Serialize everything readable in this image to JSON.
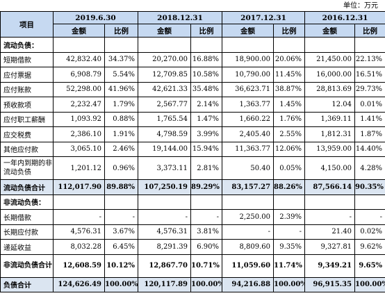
{
  "unit_label": "单位：万元",
  "header": {
    "item_label": "项目",
    "periods": [
      "2019.6.30",
      "2018.12.31",
      "2017.12.31",
      "2016.12.31"
    ],
    "amount_label": "金额",
    "ratio_label": "比例"
  },
  "rows": [
    {
      "label": "流动负债：",
      "kind": "section",
      "cells": [
        "",
        "",
        "",
        "",
        "",
        "",
        "",
        ""
      ]
    },
    {
      "label": "短期借款",
      "kind": "normal",
      "cells": [
        "42,832.40",
        "34.37%",
        "20,270.00",
        "16.88%",
        "18,900.00",
        "20.06%",
        "21,450.00",
        "22.13%"
      ]
    },
    {
      "label": "应付票据",
      "kind": "normal",
      "cells": [
        "6,908.79",
        "5.54%",
        "12,709.85",
        "10.58%",
        "10,790.00",
        "11.45%",
        "16,000.00",
        "16.51%"
      ]
    },
    {
      "label": "应付账款",
      "kind": "normal",
      "cells": [
        "52,298.00",
        "41.96%",
        "42,621.33",
        "35.48%",
        "36,623.71",
        "38.87%",
        "28,813.69",
        "29.73%"
      ]
    },
    {
      "label": "预收款项",
      "kind": "normal",
      "cells": [
        "2,232.47",
        "1.79%",
        "2,567.77",
        "2.14%",
        "1,363.77",
        "1.45%",
        "12.04",
        "0.01%"
      ]
    },
    {
      "label": "应付职工薪酬",
      "kind": "normal",
      "cells": [
        "1,093.92",
        "0.88%",
        "1,765.54",
        "1.47%",
        "1,660.22",
        "1.76%",
        "1,369.11",
        "1.41%"
      ]
    },
    {
      "label": "应交税费",
      "kind": "normal",
      "cells": [
        "2,386.10",
        "1.91%",
        "4,798.59",
        "3.99%",
        "2,405.40",
        "2.55%",
        "1,812.31",
        "1.87%"
      ]
    },
    {
      "label": "其他应付款",
      "kind": "normal",
      "cells": [
        "3,065.10",
        "2.46%",
        "19,144.00",
        "15.94%",
        "11,363.77",
        "12.06%",
        "13,959.00",
        "14.40%"
      ]
    },
    {
      "label": "一年内到期的非流动负债",
      "kind": "tall",
      "cells": [
        "1,201.12",
        "0.96%",
        "3,373.11",
        "2.81%",
        "50.40",
        "0.05%",
        "4,150.00",
        "4.28%"
      ]
    },
    {
      "label": "流动负债合计",
      "kind": "total",
      "cells": [
        "112,017.90",
        "89.88%",
        "107,250.19",
        "89.29%",
        "83,157.27",
        "88.26%",
        "87,566.14",
        "90.35%"
      ]
    },
    {
      "label": "非流动负债：",
      "kind": "section",
      "cells": [
        "",
        "",
        "",
        "",
        "",
        "",
        "",
        ""
      ]
    },
    {
      "label": "长期借款",
      "kind": "normal",
      "cells": [
        "-",
        "-",
        "-",
        "-",
        "2,250.00",
        "2.39%",
        "-",
        "-"
      ]
    },
    {
      "label": "长期应付款",
      "kind": "normal",
      "cells": [
        "4,576.31",
        "3.67%",
        "4,576.31",
        "3.81%",
        "-",
        "-",
        "21.40",
        "0.02%"
      ]
    },
    {
      "label": "递延收益",
      "kind": "normal",
      "cells": [
        "8,032.28",
        "6.45%",
        "8,291.39",
        "6.90%",
        "8,809.60",
        "9.35%",
        "9,327.81",
        "9.62%"
      ]
    },
    {
      "label": "非流动负债合计",
      "kind": "tall-bold",
      "cells": [
        "12,608.59",
        "10.12%",
        "12,867.70",
        "10.71%",
        "11,059.60",
        "11.74%",
        "9,349.21",
        "9.65%"
      ]
    },
    {
      "label": "负债合计",
      "kind": "total",
      "cells": [
        "124,626.49",
        "100.00%",
        "120,117.89",
        "100.00%",
        "94,216.88",
        "100.00%",
        "96,915.35",
        "100.00%"
      ]
    }
  ]
}
